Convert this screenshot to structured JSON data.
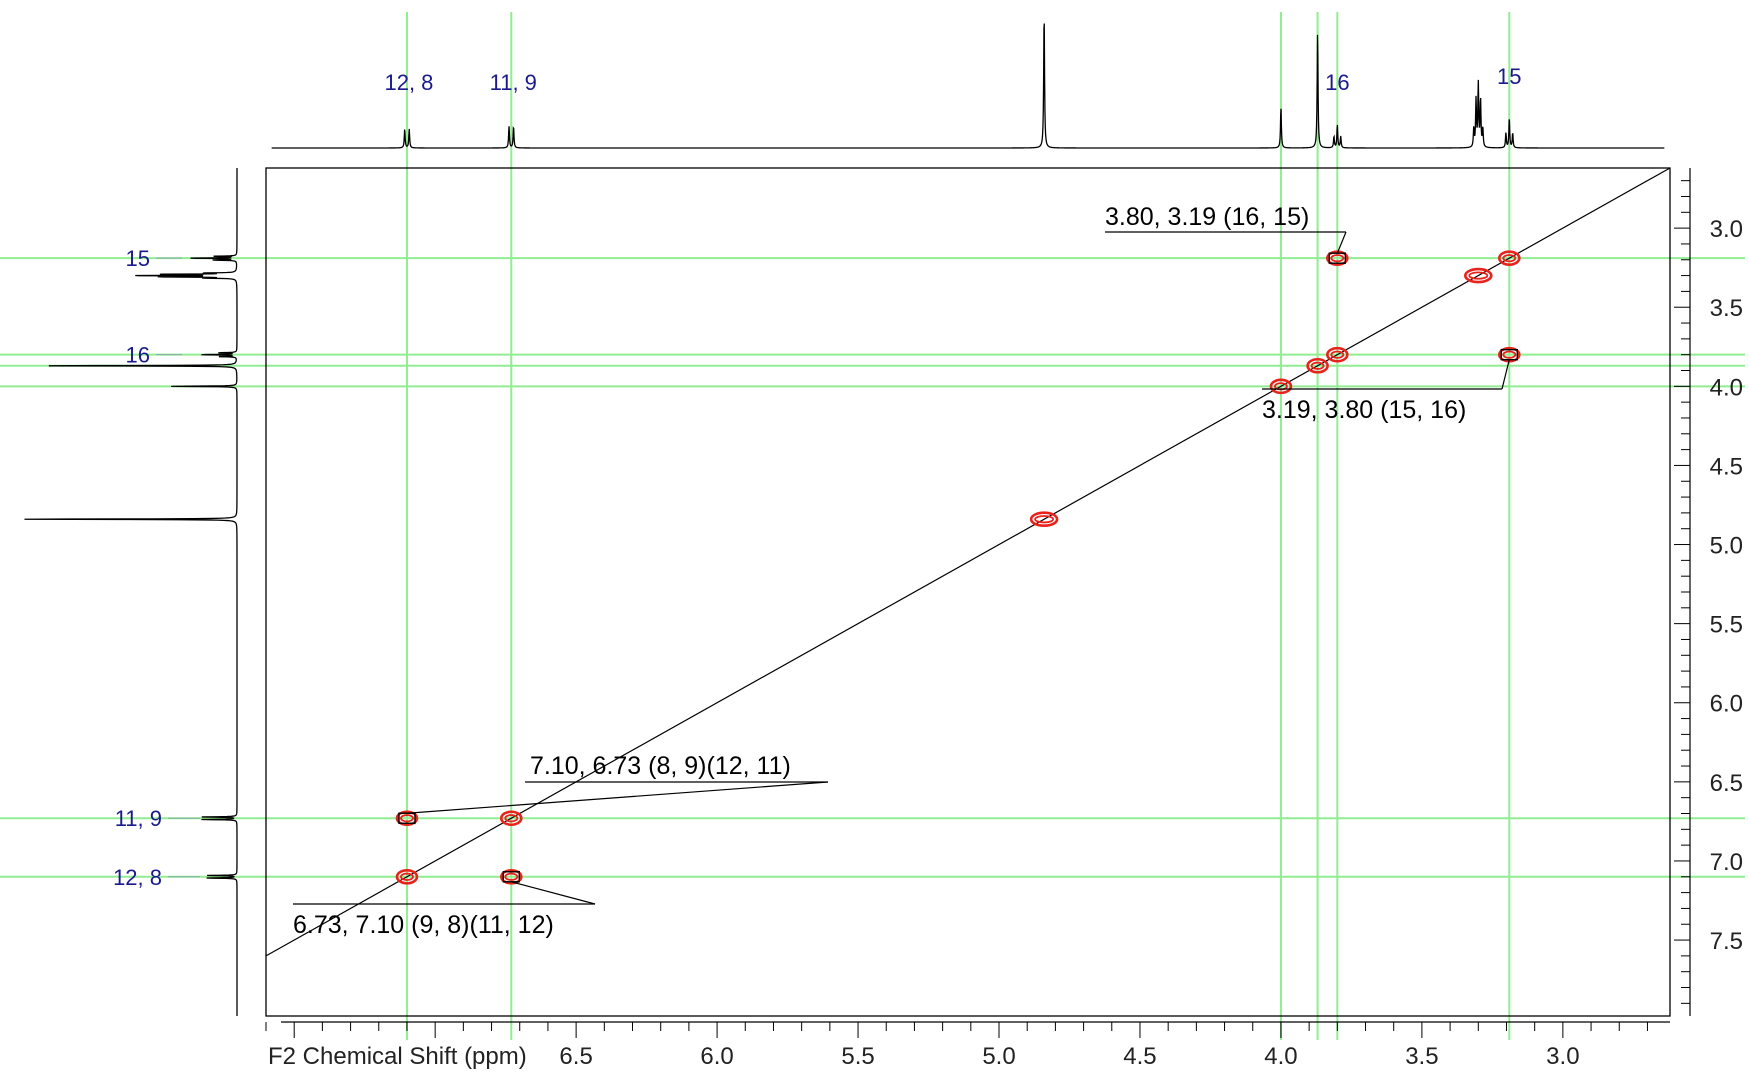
{
  "chart_data": {
    "type": "scatter",
    "subtype": "2D NMR COSY contour plot with 1D projections",
    "xlabel": "F2 Chemical Shift (ppm)",
    "ylabel": "",
    "x_axis": {
      "direction": "reversed",
      "ticks": [
        6.5,
        6.0,
        5.5,
        5.0,
        4.5,
        4.0,
        3.5,
        3.0
      ]
    },
    "y_axis": {
      "direction": "downward-increasing",
      "side": "right",
      "ticks": [
        3.0,
        3.5,
        4.0,
        4.5,
        5.0,
        5.5,
        6.0,
        6.5,
        7.0,
        7.5
      ]
    },
    "xlim": [
      7.6,
      2.62
    ],
    "ylim": [
      2.62,
      7.98
    ],
    "grid": false,
    "diagonal": true,
    "guide_lines": {
      "vertical_ppm": [
        7.1,
        6.73,
        4.0,
        3.87,
        3.8,
        3.19
      ],
      "horizontal_ppm": [
        3.19,
        3.8,
        3.87,
        4.0,
        6.73,
        7.1
      ],
      "color": "#90ee90"
    },
    "peaks": [
      {
        "x": 3.8,
        "y": 3.19,
        "type": "cross",
        "boxed": true
      },
      {
        "x": 3.19,
        "y": 3.19,
        "type": "diagonal"
      },
      {
        "x": 3.3,
        "y": 3.3,
        "type": "diagonal"
      },
      {
        "x": 3.19,
        "y": 3.8,
        "type": "cross",
        "boxed": true
      },
      {
        "x": 3.8,
        "y": 3.8,
        "type": "diagonal"
      },
      {
        "x": 3.87,
        "y": 3.87,
        "type": "diagonal"
      },
      {
        "x": 4.0,
        "y": 4.0,
        "type": "diagonal"
      },
      {
        "x": 4.84,
        "y": 4.84,
        "type": "diagonal"
      },
      {
        "x": 7.1,
        "y": 6.73,
        "type": "cross",
        "boxed": true
      },
      {
        "x": 6.73,
        "y": 6.73,
        "type": "diagonal"
      },
      {
        "x": 7.1,
        "y": 7.1,
        "type": "diagonal"
      },
      {
        "x": 6.73,
        "y": 7.1,
        "type": "cross",
        "boxed": true
      }
    ],
    "peak_color": "#e8231c",
    "annotations": [
      {
        "text": "3.80, 3.19 (16, 15)",
        "x": 3.8,
        "y": 3.19
      },
      {
        "text": "3.19, 3.80 (15, 16)",
        "x": 3.19,
        "y": 3.8
      },
      {
        "text": "7.10, 6.73 (8, 9)(12, 11)",
        "x": 7.1,
        "y": 6.73
      },
      {
        "text": "6.73, 7.10 (9, 8)(11, 12)",
        "x": 6.73,
        "y": 7.1
      }
    ],
    "top_projection_labels": [
      {
        "text": "12, 8",
        "ppm": 7.1
      },
      {
        "text": "11, 9",
        "ppm": 6.73
      },
      {
        "text": "16",
        "ppm": 3.8
      },
      {
        "text": "15",
        "ppm": 3.19
      }
    ],
    "left_projection_labels": [
      {
        "text": "15",
        "ppm": 3.19
      },
      {
        "text": "16",
        "ppm": 3.8
      },
      {
        "text": "11, 9",
        "ppm": 6.73
      },
      {
        "text": "12, 8",
        "ppm": 7.1
      }
    ],
    "spectrum_peaks": [
      {
        "ppm": 7.1,
        "height": 0.14,
        "multiplet": "doublet"
      },
      {
        "ppm": 6.73,
        "height": 0.16,
        "multiplet": "doublet"
      },
      {
        "ppm": 4.84,
        "height": 1.0,
        "multiplet": "singlet"
      },
      {
        "ppm": 4.0,
        "height": 0.3,
        "multiplet": "singlet"
      },
      {
        "ppm": 3.87,
        "height": 0.86,
        "multiplet": "singlet"
      },
      {
        "ppm": 3.8,
        "height": 0.17,
        "multiplet": "triplet"
      },
      {
        "ppm": 3.3,
        "height": 0.47,
        "multiplet": "pentet"
      },
      {
        "ppm": 3.19,
        "height": 0.22,
        "multiplet": "triplet"
      }
    ],
    "label_color": "#1a1a8c"
  }
}
